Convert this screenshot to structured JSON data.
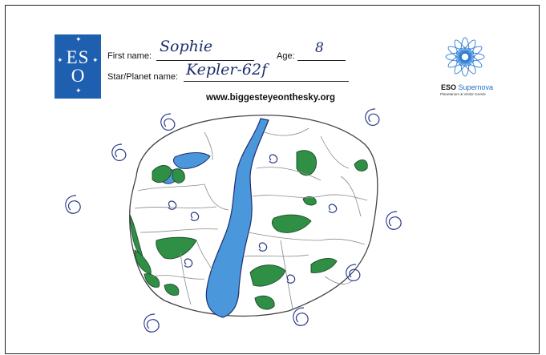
{
  "form": {
    "first_name_label": "First name:",
    "first_name_value": "Sophie",
    "age_label": "Age:",
    "age_value": "8",
    "planet_label": "Star/Planet name:",
    "planet_value": "Kepler-62f",
    "website": "www.biggesteyeonthesky.org"
  },
  "eso_logo": {
    "line1": "ES",
    "line2": "O"
  },
  "supernova_logo": {
    "brand": "ESO",
    "name": "Supernova",
    "subtitle": "Planetarium & Visitor Centre"
  },
  "colors": {
    "eso_blue": "#1f5fb0",
    "ink": "#1e2f6e",
    "water": "#3f8fd6",
    "land": "#2f8f45",
    "pencil": "#8a8a8a"
  }
}
